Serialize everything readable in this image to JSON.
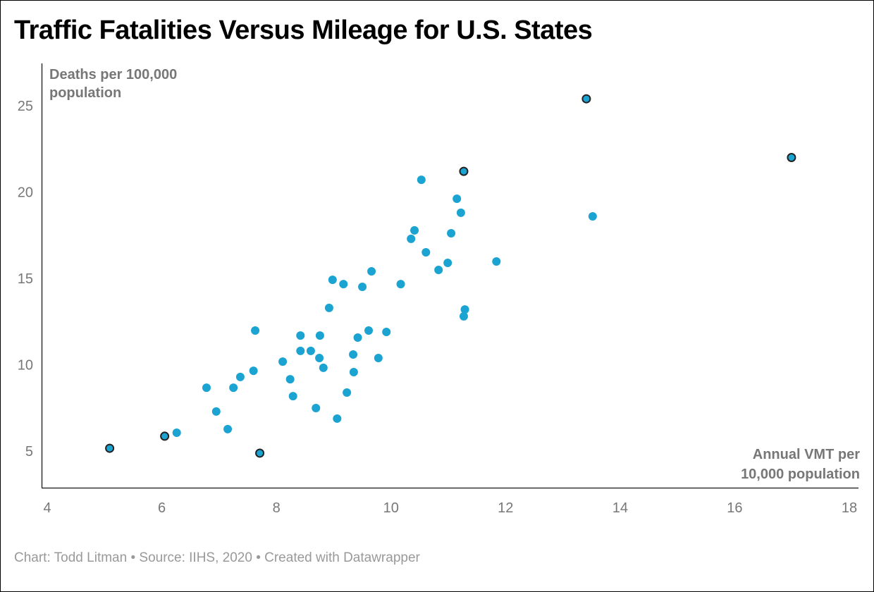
{
  "chart_data": {
    "type": "scatter",
    "title": "Traffic Fatalities Versus Mileage for U.S. States",
    "xlabel": "Annual VMT per 10,000 population",
    "xlabel_lines": [
      "Annual VMT per",
      "10,000 population"
    ],
    "ylabel_lines": [
      "Deaths per 100,000",
      "population"
    ],
    "xlim": [
      4,
      18
    ],
    "ylim": [
      3,
      27
    ],
    "xticks": [
      4,
      6,
      8,
      10,
      12,
      14,
      16,
      18
    ],
    "yticks": [
      5,
      10,
      15,
      20,
      25
    ],
    "grid": false,
    "color": "#1ba3d1",
    "highlight_stroke": "#222222",
    "points": [
      {
        "x": 5.09,
        "y": 5.16,
        "highlight": true
      },
      {
        "x": 6.05,
        "y": 5.86,
        "highlight": true
      },
      {
        "x": 7.71,
        "y": 4.88,
        "highlight": true
      },
      {
        "x": 11.27,
        "y": 21.2,
        "highlight": true
      },
      {
        "x": 13.41,
        "y": 25.4,
        "highlight": true
      },
      {
        "x": 16.99,
        "y": 22.0,
        "highlight": true
      },
      {
        "x": 6.26,
        "y": 6.06
      },
      {
        "x": 6.78,
        "y": 8.67
      },
      {
        "x": 6.95,
        "y": 7.29
      },
      {
        "x": 7.15,
        "y": 6.27
      },
      {
        "x": 7.25,
        "y": 8.67
      },
      {
        "x": 7.37,
        "y": 9.29
      },
      {
        "x": 7.6,
        "y": 9.65
      },
      {
        "x": 7.63,
        "y": 11.98
      },
      {
        "x": 8.11,
        "y": 10.18
      },
      {
        "x": 8.24,
        "y": 9.16
      },
      {
        "x": 8.29,
        "y": 8.18
      },
      {
        "x": 8.42,
        "y": 10.8
      },
      {
        "x": 8.42,
        "y": 11.69
      },
      {
        "x": 8.6,
        "y": 10.8
      },
      {
        "x": 8.69,
        "y": 7.49
      },
      {
        "x": 8.75,
        "y": 10.39
      },
      {
        "x": 8.76,
        "y": 11.69
      },
      {
        "x": 8.82,
        "y": 9.82
      },
      {
        "x": 8.92,
        "y": 13.29
      },
      {
        "x": 8.98,
        "y": 14.92
      },
      {
        "x": 9.06,
        "y": 6.88
      },
      {
        "x": 9.17,
        "y": 14.67
      },
      {
        "x": 9.23,
        "y": 8.39
      },
      {
        "x": 9.34,
        "y": 10.59
      },
      {
        "x": 9.35,
        "y": 9.57
      },
      {
        "x": 9.42,
        "y": 11.57
      },
      {
        "x": 9.5,
        "y": 14.51
      },
      {
        "x": 9.61,
        "y": 11.98
      },
      {
        "x": 9.66,
        "y": 15.41
      },
      {
        "x": 9.78,
        "y": 10.39
      },
      {
        "x": 9.92,
        "y": 11.9
      },
      {
        "x": 10.17,
        "y": 14.67
      },
      {
        "x": 10.35,
        "y": 17.29
      },
      {
        "x": 10.41,
        "y": 17.78
      },
      {
        "x": 10.53,
        "y": 20.71
      },
      {
        "x": 10.61,
        "y": 16.51
      },
      {
        "x": 10.83,
        "y": 15.49
      },
      {
        "x": 10.99,
        "y": 15.9
      },
      {
        "x": 11.05,
        "y": 17.61
      },
      {
        "x": 11.15,
        "y": 19.61
      },
      {
        "x": 11.22,
        "y": 18.8
      },
      {
        "x": 11.27,
        "y": 12.8
      },
      {
        "x": 11.29,
        "y": 13.2
      },
      {
        "x": 11.84,
        "y": 15.98
      },
      {
        "x": 13.52,
        "y": 18.59
      }
    ]
  },
  "footer": "Chart: Todd Litman • Source: IIHS, 2020 • Created with Datawrapper"
}
